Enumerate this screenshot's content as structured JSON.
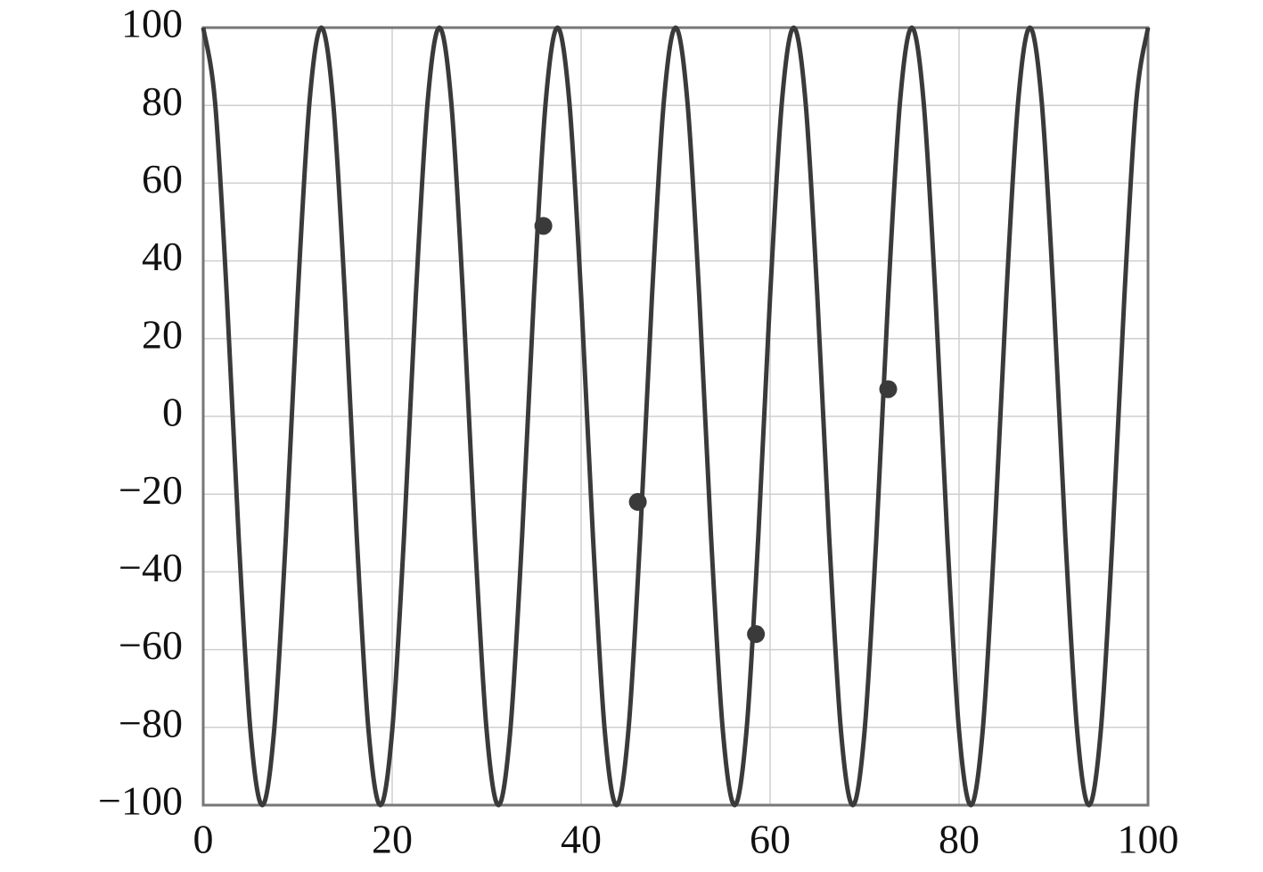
{
  "chart_data": {
    "type": "line",
    "x": [
      0,
      1.25,
      2.5,
      3.75,
      5,
      6.25,
      7.5,
      8.75,
      10,
      11.25,
      12.5,
      13.75,
      15,
      16.25,
      17.5,
      18.75,
      20,
      21.25,
      22.5,
      23.75,
      25,
      26.25,
      27.5,
      28.75,
      30,
      31.25,
      32.5,
      33.75,
      35,
      36.25,
      37.5,
      38.75,
      40,
      41.25,
      42.5,
      43.75,
      45,
      46.25,
      47.5,
      48.75,
      50,
      51.25,
      52.5,
      53.75,
      55,
      56.25,
      57.5,
      58.75,
      60,
      61.25,
      62.5,
      63.75,
      65,
      66.25,
      67.5,
      68.75,
      70,
      71.25,
      72.5,
      73.75,
      75,
      76.25,
      77.5,
      78.75,
      80,
      81.25,
      82.5,
      83.75,
      85,
      86.25,
      87.5,
      88.75,
      90,
      91.25,
      92.5,
      93.75,
      95,
      96.25,
      97.5,
      98.75,
      100
    ],
    "series": [
      {
        "color": "#3a3a3a",
        "values": [
          100,
          80.9,
          30.9,
          -30.9,
          -80.9,
          -100,
          -80.9,
          -30.9,
          30.9,
          80.9,
          100,
          80.9,
          30.9,
          -30.9,
          -80.9,
          -100,
          -80.9,
          -30.9,
          30.9,
          80.9,
          100,
          80.9,
          30.9,
          -30.9,
          -80.9,
          -100,
          -80.9,
          -30.9,
          30.9,
          80.9,
          100,
          80.9,
          30.9,
          -30.9,
          -80.9,
          -100,
          -80.9,
          -30.9,
          30.9,
          80.9,
          100,
          80.9,
          30.9,
          -30.9,
          -80.9,
          -100,
          -80.9,
          -30.9,
          30.9,
          80.9,
          100,
          80.9,
          30.9,
          -30.9,
          -80.9,
          -100,
          -80.9,
          -30.9,
          30.9,
          80.9,
          100,
          80.9,
          30.9,
          -30.9,
          -80.9,
          -100,
          -80.9,
          -30.9,
          30.9,
          80.9,
          100,
          80.9,
          30.9,
          -30.9,
          -80.9,
          -100,
          -80.9,
          -30.9,
          30.9,
          80.9,
          100
        ]
      }
    ],
    "points": {
      "color": "#3a3a3a",
      "x": [
        36,
        46,
        58.5,
        72.5
      ],
      "y": [
        49,
        -22,
        -56,
        7
      ]
    },
    "xlim": [
      0,
      100
    ],
    "ylim": [
      -100,
      100
    ],
    "xticks": [
      0,
      20,
      40,
      60,
      80,
      100
    ],
    "yticks": [
      {
        "value": -100,
        "label": "−100"
      },
      {
        "value": -80,
        "label": "−80"
      },
      {
        "value": -60,
        "label": "−60"
      },
      {
        "value": -40,
        "label": "−40"
      },
      {
        "value": -20,
        "label": "−20"
      },
      0,
      20,
      40,
      60,
      80,
      100
    ],
    "grid": true
  }
}
